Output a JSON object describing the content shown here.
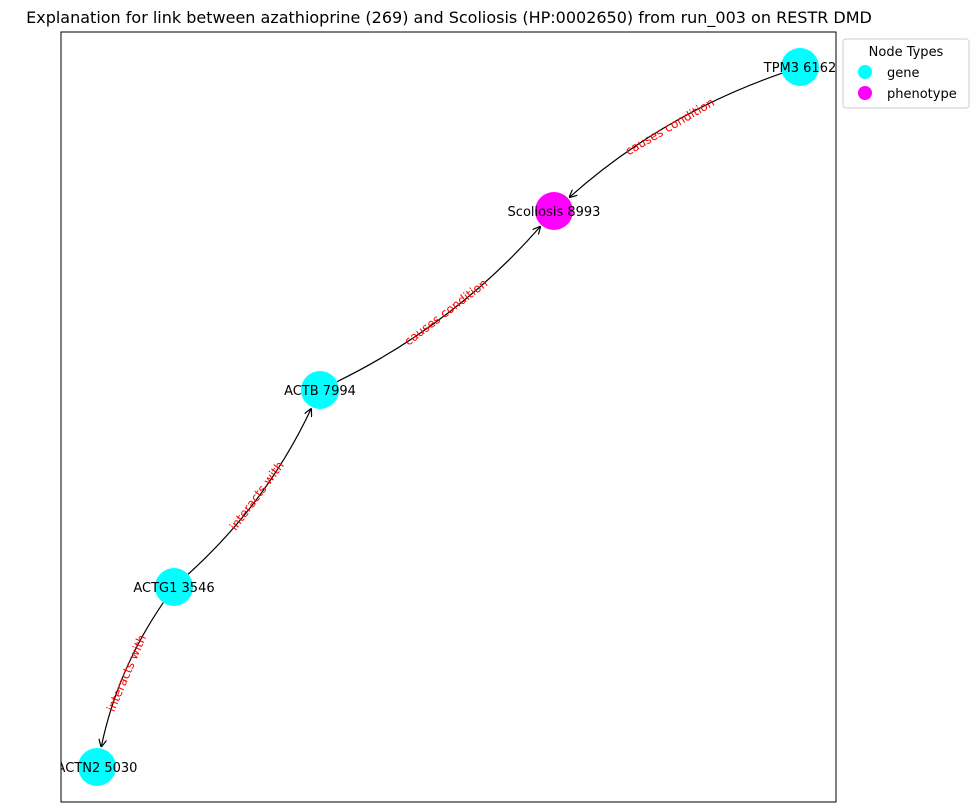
{
  "title": "Explanation for link between azathioprine (269) and Scoliosis (HP:0002650) from run_003 on RESTR DMD",
  "legend": {
    "title": "Node Types",
    "placement": "top-right, outside plot",
    "items": [
      {
        "label": "gene",
        "color": "#00ffff"
      },
      {
        "label": "phenotype",
        "color": "#ff00ff"
      }
    ]
  },
  "node_types": {
    "gene": {
      "color": "#00ffff"
    },
    "phenotype": {
      "color": "#ff00ff"
    }
  },
  "nodes": [
    {
      "id": "tpm3",
      "label": "TPM3 6162",
      "type": "gene"
    },
    {
      "id": "scoliosis",
      "label": "Scoliosis 8993",
      "type": "phenotype"
    },
    {
      "id": "actb",
      "label": "ACTB 7994",
      "type": "gene"
    },
    {
      "id": "actg1",
      "label": "ACTG1 3546",
      "type": "gene"
    },
    {
      "id": "actn2",
      "label": "ACTN2 5030",
      "type": "gene"
    }
  ],
  "edges": [
    {
      "from": "tpm3",
      "to": "scoliosis",
      "label": "causes condition"
    },
    {
      "from": "actb",
      "to": "scoliosis",
      "label": "causes condition"
    },
    {
      "from": "actg1",
      "to": "actb",
      "label": "interacts with"
    },
    {
      "from": "actg1",
      "to": "actn2",
      "label": "interacts with"
    }
  ],
  "colors": {
    "edge": "#000000",
    "edge_label": "#ff0000"
  }
}
